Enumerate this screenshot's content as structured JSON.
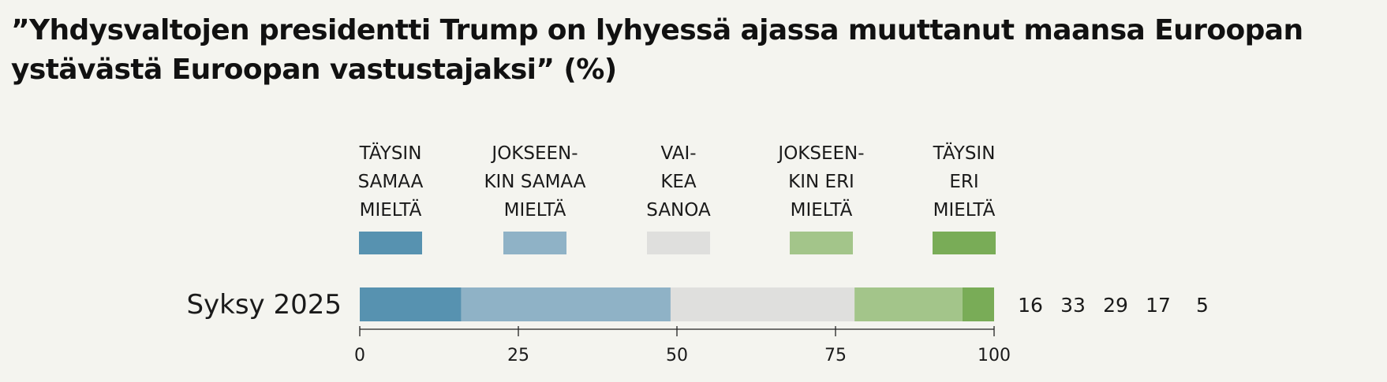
{
  "chart_data": {
    "type": "bar",
    "stacked": true,
    "orientation": "horizontal",
    "title_lines": [
      "”Yhdysvaltojen presidentti Trump on lyhyessä ajassa muuttanut maansa Euroopan",
      "ystävästä Euroopan vastustajaksi” (%)"
    ],
    "categories": [
      "Syksy 2025"
    ],
    "series": [
      {
        "name": "TÄYSIN SAMAA MIELTÄ",
        "label_lines": [
          "TÄYSIN",
          "SAMAA",
          "MIELTÄ"
        ],
        "values": [
          16
        ],
        "color": "#5792b0"
      },
      {
        "name": "JOKSEENKIN SAMAA MIELTÄ",
        "label_lines": [
          "JOKSEEN-",
          "KIN SAMAA",
          "MIELTÄ"
        ],
        "values": [
          33
        ],
        "color": "#8fb2c6"
      },
      {
        "name": "VAIKEA SANOA",
        "label_lines": [
          "VAI-",
          "KEA",
          "SANOA"
        ],
        "values": [
          29
        ],
        "color": "#dfdfdd"
      },
      {
        "name": "JOKSEENKIN ERI MIELTÄ",
        "label_lines": [
          "JOKSEEN-",
          "KIN ERI",
          "MIELTÄ"
        ],
        "values": [
          17
        ],
        "color": "#a3c58a"
      },
      {
        "name": "TÄYSIN ERI MIELTÄ",
        "label_lines": [
          "TÄYSIN",
          "ERI",
          "MIELTÄ"
        ],
        "values": [
          5
        ],
        "color": "#79ac57"
      }
    ],
    "value_labels": [
      "16",
      "33",
      "29",
      "17",
      "5"
    ],
    "xlim": [
      0,
      100
    ],
    "xticks": [
      0,
      25,
      50,
      75,
      100
    ],
    "xtick_labels": [
      "0",
      "25",
      "50",
      "75",
      "100"
    ],
    "legend_position": "top",
    "grid": false,
    "background": "#f4f4ef"
  }
}
